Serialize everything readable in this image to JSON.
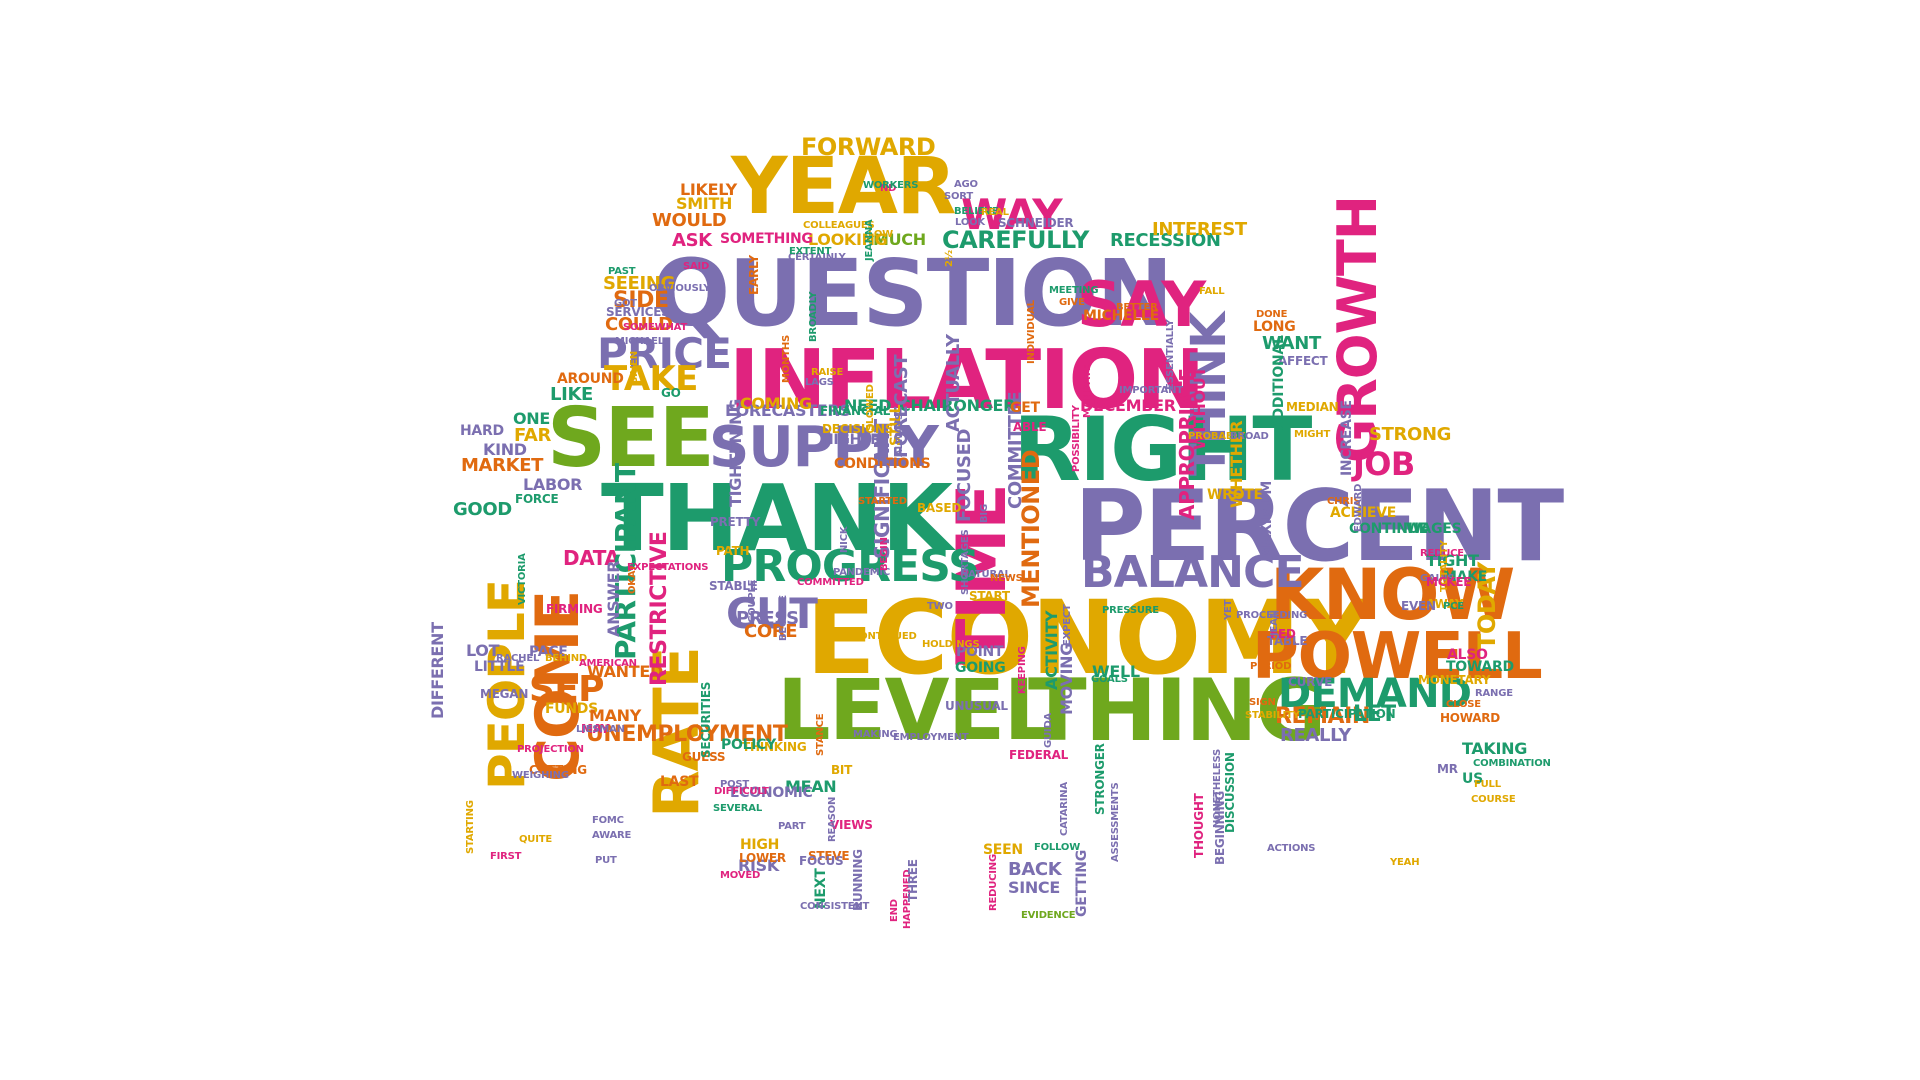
{
  "palette": {
    "purple": "#7b6fb0",
    "pink": "#e0237f",
    "green": "#1d9b6c",
    "gold": "#e0a800",
    "orange": "#e06a10",
    "lime": "#6fa81e"
  },
  "words": [
    {
      "text": "INFLATION",
      "c": "pink"
    },
    {
      "text": "QUESTION",
      "c": "purple"
    },
    {
      "text": "ECONOMY",
      "c": "gold"
    },
    {
      "text": "THANK",
      "c": "green"
    },
    {
      "text": "PERCENT",
      "c": "purple"
    },
    {
      "text": "RIGHT",
      "c": "green"
    },
    {
      "text": "YEAR",
      "c": "gold"
    },
    {
      "text": "LEVEL",
      "c": "lime"
    },
    {
      "text": "THING",
      "c": "lime"
    },
    {
      "text": "SEE",
      "c": "lime"
    },
    {
      "text": "KNOW",
      "c": "orange"
    },
    {
      "text": "TIME",
      "c": "pink"
    },
    {
      "text": "RATE",
      "c": "gold"
    },
    {
      "text": "COME",
      "c": "orange"
    },
    {
      "text": "PEOPLE",
      "c": "gold"
    },
    {
      "text": "THINK",
      "c": "purple"
    },
    {
      "text": "SUPPLY",
      "c": "purple"
    },
    {
      "text": "POWELL",
      "c": "orange"
    },
    {
      "text": "GROWTH",
      "c": "pink"
    },
    {
      "text": "PROGRESS",
      "c": "green"
    },
    {
      "text": "SAY",
      "c": "pink"
    },
    {
      "text": "WAY",
      "c": "pink"
    },
    {
      "text": "BALANCE",
      "c": "purple"
    },
    {
      "text": "DEMAND",
      "c": "green"
    },
    {
      "text": "PRICE",
      "c": "purple"
    },
    {
      "text": "TAKE",
      "c": "gold"
    },
    {
      "text": "CUT",
      "c": "purple"
    },
    {
      "text": "SEP",
      "c": "orange"
    },
    {
      "text": "JOB",
      "c": "pink"
    },
    {
      "text": "FORWARD",
      "c": "gold"
    },
    {
      "text": "CAREFULLY",
      "c": "green"
    },
    {
      "text": "UNEMPLOYMENT",
      "c": "orange"
    },
    {
      "text": "REMAIN",
      "c": "orange"
    },
    {
      "text": "LET",
      "c": "green"
    },
    {
      "text": "REALLY",
      "c": "purple"
    },
    {
      "text": "DATA",
      "c": "pink"
    },
    {
      "text": "PARTICIPANT",
      "c": "green"
    },
    {
      "text": "MENTIONED",
      "c": "orange"
    },
    {
      "text": "TODAY",
      "c": "gold"
    },
    {
      "text": "MARKET",
      "c": "orange"
    },
    {
      "text": "PRESS",
      "c": "purple"
    },
    {
      "text": "DECEMBER",
      "c": "pink"
    },
    {
      "text": "STRONG",
      "c": "gold"
    },
    {
      "text": "CORE",
      "c": "orange"
    },
    {
      "text": "RECESSION",
      "c": "green"
    },
    {
      "text": "INTEREST",
      "c": "gold"
    },
    {
      "text": "MUCH",
      "c": "lime"
    },
    {
      "text": "LOOKING",
      "c": "gold"
    },
    {
      "text": "SOMETHING",
      "c": "pink"
    },
    {
      "text": "ASK",
      "c": "pink"
    },
    {
      "text": "SMITH",
      "c": "gold"
    },
    {
      "text": "LIKELY",
      "c": "orange"
    },
    {
      "text": "WOULD",
      "c": "orange"
    },
    {
      "text": "SEEING",
      "c": "gold"
    },
    {
      "text": "SIDE",
      "c": "orange"
    },
    {
      "text": "COULD",
      "c": "orange"
    },
    {
      "text": "AROUND",
      "c": "orange"
    },
    {
      "text": "LIKE",
      "c": "green"
    },
    {
      "text": "ONE",
      "c": "green"
    },
    {
      "text": "FAR",
      "c": "gold"
    },
    {
      "text": "KIND",
      "c": "purple"
    },
    {
      "text": "HARD",
      "c": "purple"
    },
    {
      "text": "LABOR",
      "c": "purple"
    },
    {
      "text": "GOOD",
      "c": "green"
    },
    {
      "text": "DIFFERENT",
      "c": "purple"
    },
    {
      "text": "LOT",
      "c": "purple"
    },
    {
      "text": "LITTLE",
      "c": "purple"
    },
    {
      "text": "PACE",
      "c": "purple"
    },
    {
      "text": "MEGAN",
      "c": "purple"
    },
    {
      "text": "FUNDS",
      "c": "gold"
    },
    {
      "text": "MANY",
      "c": "orange"
    },
    {
      "text": "WANTED",
      "c": "orange"
    },
    {
      "text": "MAY",
      "c": "pink"
    },
    {
      "text": "RESTRICTIVE",
      "c": "pink"
    },
    {
      "text": "ANSWER",
      "c": "purple"
    },
    {
      "text": "TIGHTENING",
      "c": "purple"
    },
    {
      "text": "FORECASTERS",
      "c": "purple"
    },
    {
      "text": "FINANCIAL",
      "c": "green"
    },
    {
      "text": "HIGHER",
      "c": "purple"
    },
    {
      "text": "CONDITIONS",
      "c": "orange"
    },
    {
      "text": "SIGNIFICANT",
      "c": "purple"
    },
    {
      "text": "FOCUSED",
      "c": "purple"
    },
    {
      "text": "COMMITTEE",
      "c": "purple"
    },
    {
      "text": "CHAIR",
      "c": "green"
    },
    {
      "text": "LONGER",
      "c": "green"
    },
    {
      "text": "COMING",
      "c": "gold"
    },
    {
      "text": "NEED",
      "c": "green"
    },
    {
      "text": "GET",
      "c": "orange"
    },
    {
      "text": "FORECAST",
      "c": "purple"
    },
    {
      "text": "ACTUALLY",
      "c": "purple"
    },
    {
      "text": "STILL",
      "c": "gold"
    },
    {
      "text": "BASED",
      "c": "gold"
    },
    {
      "text": "POINT",
      "c": "purple"
    },
    {
      "text": "GOING",
      "c": "green"
    },
    {
      "text": "START",
      "c": "gold"
    },
    {
      "text": "MOVING",
      "c": "purple"
    },
    {
      "text": "ACTIVITY",
      "c": "green"
    },
    {
      "text": "WELL",
      "c": "green"
    },
    {
      "text": "APPROPRIATE",
      "c": "pink"
    },
    {
      "text": "WITHOUT",
      "c": "pink"
    },
    {
      "text": "WROTE",
      "c": "gold"
    },
    {
      "text": "WHETHER",
      "c": "gold"
    },
    {
      "text": "MAXIMUM",
      "c": "purple"
    },
    {
      "text": "MICHELLE",
      "c": "orange"
    },
    {
      "text": "LONG",
      "c": "orange"
    },
    {
      "text": "WANT",
      "c": "green"
    },
    {
      "text": "AFFECT",
      "c": "purple"
    },
    {
      "text": "MEDIAN",
      "c": "gold"
    },
    {
      "text": "ADDITIONAL",
      "c": "green"
    },
    {
      "text": "INCREASE",
      "c": "purple"
    },
    {
      "text": "ACHIEVE",
      "c": "gold"
    },
    {
      "text": "CONTINUE",
      "c": "green"
    },
    {
      "text": "WAGES",
      "c": "green"
    },
    {
      "text": "TIGHT",
      "c": "green"
    },
    {
      "text": "MAKE",
      "c": "green"
    },
    {
      "text": "ALSO",
      "c": "pink"
    },
    {
      "text": "TOWARD",
      "c": "green"
    },
    {
      "text": "MONETARY",
      "c": "gold"
    },
    {
      "text": "HOWARD",
      "c": "orange"
    },
    {
      "text": "TAKING",
      "c": "green"
    },
    {
      "text": "US",
      "c": "green"
    },
    {
      "text": "CURVE",
      "c": "purple"
    },
    {
      "text": "TABLE",
      "c": "purple"
    },
    {
      "text": "FED",
      "c": "pink"
    },
    {
      "text": "PARTICIPATION",
      "c": "green"
    },
    {
      "text": "GETTING",
      "c": "purple"
    },
    {
      "text": "BACK",
      "c": "purple"
    },
    {
      "text": "SINCE",
      "c": "purple"
    },
    {
      "text": "SEEN",
      "c": "gold"
    },
    {
      "text": "STEVE",
      "c": "orange"
    },
    {
      "text": "NEXT",
      "c": "green"
    },
    {
      "text": "RISK",
      "c": "purple"
    },
    {
      "text": "HIGH",
      "c": "gold"
    },
    {
      "text": "LOWER",
      "c": "orange"
    },
    {
      "text": "FOCUS",
      "c": "purple"
    },
    {
      "text": "MEAN",
      "c": "green"
    },
    {
      "text": "ECONOMIC",
      "c": "purple"
    },
    {
      "text": "VIEWS",
      "c": "pink"
    },
    {
      "text": "BIT",
      "c": "gold"
    },
    {
      "text": "THINKING",
      "c": "gold"
    },
    {
      "text": "POLICY",
      "c": "green"
    },
    {
      "text": "GUESS",
      "c": "orange"
    },
    {
      "text": "LAST",
      "c": "orange"
    },
    {
      "text": "SECURITIES",
      "c": "green"
    },
    {
      "text": "CUTTING",
      "c": "orange"
    },
    {
      "text": "FEDERAL",
      "c": "pink"
    },
    {
      "text": "STRONGER",
      "c": "green"
    },
    {
      "text": "BEGINNING",
      "c": "purple"
    },
    {
      "text": "DISCUSSION",
      "c": "green"
    },
    {
      "text": "THOUGHT",
      "c": "pink"
    },
    {
      "text": "FIRMING",
      "c": "pink"
    },
    {
      "text": "VICTORIA",
      "c": "green"
    },
    {
      "text": "FORCE",
      "c": "green"
    },
    {
      "text": "PRETTY",
      "c": "purple"
    },
    {
      "text": "PATH",
      "c": "gold"
    },
    {
      "text": "STABLE",
      "c": "purple"
    },
    {
      "text": "COUPLE",
      "c": "purple"
    },
    {
      "text": "BECOME",
      "c": "purple"
    },
    {
      "text": "CONTINUED",
      "c": "gold"
    },
    {
      "text": "COMMITTED",
      "c": "pink"
    },
    {
      "text": "HOLDINGS",
      "c": "gold"
    },
    {
      "text": "TWO",
      "c": "purple"
    },
    {
      "text": "NATURAL",
      "c": "purple"
    },
    {
      "text": "SHORTAGES",
      "c": "purple"
    },
    {
      "text": "UNUSUAL",
      "c": "purple"
    },
    {
      "text": "HAPPENED",
      "c": "pink"
    },
    {
      "text": "EVIDENCE",
      "c": "lime"
    },
    {
      "text": "REDUCING",
      "c": "pink"
    },
    {
      "text": "THREE",
      "c": "purple"
    },
    {
      "text": "RUNNING",
      "c": "purple"
    },
    {
      "text": "END",
      "c": "pink"
    },
    {
      "text": "CONSISTENT",
      "c": "purple"
    },
    {
      "text": "MOVED",
      "c": "pink"
    },
    {
      "text": "POST",
      "c": "purple"
    },
    {
      "text": "SEVERAL",
      "c": "green"
    },
    {
      "text": "DIFFICULT",
      "c": "pink"
    },
    {
      "text": "STANCE",
      "c": "orange"
    },
    {
      "text": "MAKING",
      "c": "purple"
    },
    {
      "text": "EMPLOYMENT",
      "c": "purple"
    },
    {
      "text": "WEIGHING",
      "c": "purple"
    },
    {
      "text": "QUITE",
      "c": "gold"
    },
    {
      "text": "AWARE",
      "c": "purple"
    },
    {
      "text": "FOMC",
      "c": "purple"
    },
    {
      "text": "PUT",
      "c": "purple"
    },
    {
      "text": "FIRST",
      "c": "pink"
    },
    {
      "text": "STARTING",
      "c": "gold"
    },
    {
      "text": "PROJECTION",
      "c": "pink"
    },
    {
      "text": "LIESMAN",
      "c": "purple"
    },
    {
      "text": "BEHIND",
      "c": "gold"
    },
    {
      "text": "AMERICAN",
      "c": "pink"
    },
    {
      "text": "RACHEL",
      "c": "purple"
    },
    {
      "text": "OKAY",
      "c": "orange"
    },
    {
      "text": "EXPECTATIONS",
      "c": "pink"
    },
    {
      "text": "NICK",
      "c": "purple"
    },
    {
      "text": "PANDEMIC",
      "c": "purple"
    },
    {
      "text": "BEGIN",
      "c": "pink"
    },
    {
      "text": "BIG",
      "c": "purple"
    },
    {
      "text": "NEWS",
      "c": "orange"
    },
    {
      "text": "STARTED",
      "c": "orange"
    },
    {
      "text": "ALWAYS",
      "c": "purple"
    },
    {
      "text": "SLOWED",
      "c": "gold"
    },
    {
      "text": "POSSIBILITY",
      "c": "pink"
    },
    {
      "text": "MANDATE",
      "c": "pink"
    },
    {
      "text": "IMPORTANT",
      "c": "purple"
    },
    {
      "text": "ESSENTIALLY",
      "c": "purple"
    },
    {
      "text": "PROBABLY",
      "c": "gold"
    },
    {
      "text": "BROAD",
      "c": "purple"
    },
    {
      "text": "MIGHT",
      "c": "gold"
    },
    {
      "text": "CHRIS",
      "c": "orange"
    },
    {
      "text": "EDWARD",
      "c": "purple"
    },
    {
      "text": "REDUCE",
      "c": "pink"
    },
    {
      "text": "GAINS",
      "c": "purple"
    },
    {
      "text": "TOTALITY",
      "c": "gold"
    },
    {
      "text": "COURSE",
      "c": "gold"
    },
    {
      "text": "COMBINATION",
      "c": "green"
    },
    {
      "text": "FULL",
      "c": "gold"
    },
    {
      "text": "RANGE",
      "c": "purple"
    },
    {
      "text": "CLOSE",
      "c": "orange"
    },
    {
      "text": "SIGN",
      "c": "orange"
    },
    {
      "text": "PERIOD",
      "c": "orange"
    },
    {
      "text": "STABILITY",
      "c": "gold"
    },
    {
      "text": "JEAN",
      "c": "purple"
    },
    {
      "text": "YET",
      "c": "purple"
    },
    {
      "text": "PROCEEDING",
      "c": "purple"
    },
    {
      "text": "PRESSURE",
      "c": "green"
    },
    {
      "text": "GOALS",
      "c": "green"
    },
    {
      "text": "EXPECT",
      "c": "purple"
    },
    {
      "text": "KEEPING",
      "c": "pink"
    },
    {
      "text": "FOLLOW",
      "c": "green"
    },
    {
      "text": "GUIDA",
      "c": "purple"
    },
    {
      "text": "CATARINA",
      "c": "purple"
    },
    {
      "text": "ASSESSMENTS",
      "c": "purple"
    },
    {
      "text": "NONETHELESS",
      "c": "purple"
    },
    {
      "text": "ACTIONS",
      "c": "purple"
    },
    {
      "text": "YEAH",
      "c": "gold"
    },
    {
      "text": "PART",
      "c": "purple"
    },
    {
      "text": "REASON",
      "c": "purple"
    },
    {
      "text": "SERVICES",
      "c": "purple"
    },
    {
      "text": "GO",
      "c": "green"
    },
    {
      "text": "GIVEN",
      "c": "gold"
    },
    {
      "text": "MICHAEL",
      "c": "purple"
    },
    {
      "text": "SOMEWHAT",
      "c": "pink"
    },
    {
      "text": "GOT",
      "c": "purple"
    },
    {
      "text": "OBVIOUSLY",
      "c": "purple"
    },
    {
      "text": "PAST",
      "c": "green"
    },
    {
      "text": "SAID",
      "c": "pink"
    },
    {
      "text": "EARLY",
      "c": "orange"
    },
    {
      "text": "MONTHS",
      "c": "orange"
    },
    {
      "text": "COLLEAGUES",
      "c": "gold"
    },
    {
      "text": "CERTAINLY",
      "c": "purple"
    },
    {
      "text": "EXTENT",
      "c": "green"
    },
    {
      "text": "LOW",
      "c": "gold"
    },
    {
      "text": "JEANNA",
      "c": "green"
    },
    {
      "text": "ND",
      "c": "pink"
    },
    {
      "text": "WORKERS",
      "c": "green"
    },
    {
      "text": "AGO",
      "c": "purple"
    },
    {
      "text": "SORT",
      "c": "purple"
    },
    {
      "text": "BELIEVE",
      "c": "green"
    },
    {
      "text": "REAL",
      "c": "gold"
    },
    {
      "text": "SCHNEIDER",
      "c": "purple"
    },
    {
      "text": "LOOK",
      "c": "purple"
    },
    {
      "text": "2½",
      "c": "gold"
    },
    {
      "text": "MEETING",
      "c": "green"
    },
    {
      "text": "GIVE",
      "c": "orange"
    },
    {
      "text": "BETTER",
      "c": "orange"
    },
    {
      "text": "FALL",
      "c": "gold"
    },
    {
      "text": "DONE",
      "c": "orange"
    },
    {
      "text": "INDIVIDUAL",
      "c": "orange"
    },
    {
      "text": "RAISE",
      "c": "gold"
    },
    {
      "text": "LAGS",
      "c": "purple"
    },
    {
      "text": "BROADLY",
      "c": "green"
    },
    {
      "text": "DECISIONS",
      "c": "gold"
    },
    {
      "text": "ABLE",
      "c": "pink"
    },
    {
      "text": "MCKEE",
      "c": "pink"
    },
    {
      "text": "AWAY",
      "c": "gold"
    },
    {
      "text": "EVEN",
      "c": "purple"
    },
    {
      "text": "PCE",
      "c": "green"
    },
    {
      "text": "MR",
      "c": "purple"
    },
    {
      "text": "B",
      "c": "purple"
    },
    {
      "text": "F",
      "c": "purple"
    },
    {
      "text": "H",
      "c": "pink"
    }
  ]
}
